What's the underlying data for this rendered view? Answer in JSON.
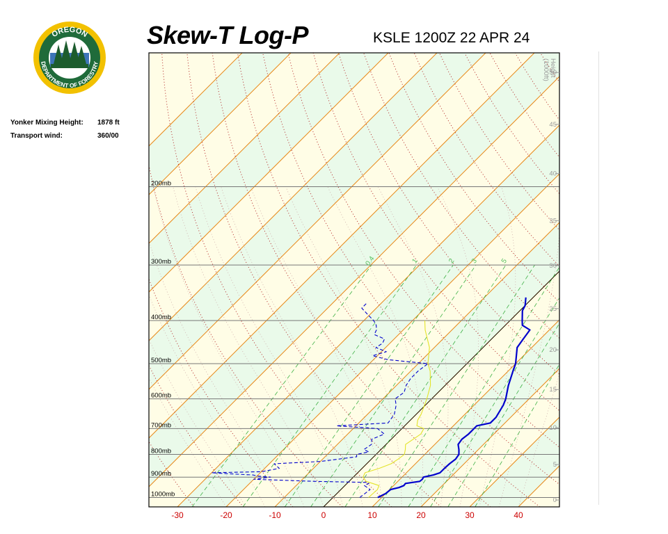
{
  "header": {
    "title": "Skew-T Log-P",
    "station_time": "KSLE 1200Z 22 APR 24"
  },
  "logo": {
    "top_text": "OREGON",
    "bottom_text": "DEPARTMENT OF FORESTRY",
    "colors": {
      "ring": "#1f6b3a",
      "gold": "#f2c100",
      "tree": "#1d5c2e",
      "sky": "#3e74b8"
    }
  },
  "info": {
    "mixing_height_label": "Yonker Mixing Height:",
    "mixing_height_value": "1878 ft",
    "transport_wind_label": "Transport wind:",
    "transport_wind_value": "360/00"
  },
  "chart_data": {
    "type": "line",
    "xlabel": "",
    "ylabel": "",
    "temperature_ticks": [
      "-30",
      "-20",
      "-10",
      "0",
      "10",
      "20",
      "30",
      "40"
    ],
    "pressure_levels": [
      {
        "label": "200mb",
        "p": 200
      },
      {
        "label": "300mb",
        "p": 300
      },
      {
        "label": "400mb",
        "p": 400
      },
      {
        "label": "500mb",
        "p": 500
      },
      {
        "label": "600mb",
        "p": 600
      },
      {
        "label": "700mb",
        "p": 700
      },
      {
        "label": "800mb",
        "p": 800
      },
      {
        "label": "900mb",
        "p": 900
      },
      {
        "label": "1000mb",
        "p": 1000
      }
    ],
    "height_axis": {
      "label_line1": "Height",
      "label_line2": "(1000ft)",
      "ticks": [
        {
          "label": "50",
          "kft": 50
        },
        {
          "label": "45",
          "kft": 45
        },
        {
          "label": "40",
          "kft": 40
        },
        {
          "label": "35",
          "kft": 35
        },
        {
          "label": "30",
          "kft": 30
        },
        {
          "label": "25",
          "kft": 25
        },
        {
          "label": "20",
          "kft": 20
        },
        {
          "label": "15",
          "kft": 15
        },
        {
          "label": "10",
          "kft": 10
        },
        {
          "label": "5",
          "kft": 5
        },
        {
          "label": "0",
          "kft": 0
        }
      ]
    },
    "mixing_ratio_labels": [
      {
        "label": "0.4",
        "w": 0.4
      },
      {
        "label": "1",
        "w": 1
      },
      {
        "label": "2",
        "w": 2
      },
      {
        "label": "3",
        "w": 3
      },
      {
        "label": "5",
        "w": 5
      }
    ],
    "series": [
      {
        "key": "temperature",
        "color": "#0000cc",
        "points": [
          [
            1000,
            9.2
          ],
          [
            980,
            10.0
          ],
          [
            960,
            10.2
          ],
          [
            950,
            11.5
          ],
          [
            940,
            12.1
          ],
          [
            930,
            12.0
          ],
          [
            920,
            14.5
          ],
          [
            910,
            14.6
          ],
          [
            900,
            14.4
          ],
          [
            890,
            16.0
          ],
          [
            880,
            16.9
          ],
          [
            860,
            16.9
          ],
          [
            840,
            17.0
          ],
          [
            820,
            17.3
          ],
          [
            800,
            17.0
          ],
          [
            780,
            16.0
          ],
          [
            760,
            14.8
          ],
          [
            740,
            14.5
          ],
          [
            720,
            14.8
          ],
          [
            700,
            14.8
          ],
          [
            690,
            14.8
          ],
          [
            680,
            17.0
          ],
          [
            660,
            17.0
          ],
          [
            640,
            16.5
          ],
          [
            620,
            16.0
          ],
          [
            600,
            15.2
          ],
          [
            560,
            13.0
          ],
          [
            520,
            11.0
          ],
          [
            500,
            10.0
          ],
          [
            460,
            7.0
          ],
          [
            440,
            6.5
          ],
          [
            420,
            6.0
          ],
          [
            410,
            3.5
          ],
          [
            400,
            2.5
          ],
          [
            380,
            0.5
          ],
          [
            370,
            0.0
          ],
          [
            355,
            -1.5
          ]
        ]
      },
      {
        "key": "dewpoint",
        "color": "#0000cc",
        "points": [
          [
            1000,
            5.5
          ],
          [
            960,
            6.0
          ],
          [
            940,
            4.0
          ],
          [
            930,
            4.5
          ],
          [
            925,
            4.0
          ],
          [
            920,
            -7.0
          ],
          [
            910,
            -20.0
          ],
          [
            900,
            -17.0
          ],
          [
            895,
            -20.0
          ],
          [
            890,
            -21.0
          ],
          [
            885,
            -26.0
          ],
          [
            880,
            -30.0
          ],
          [
            875,
            -20.0
          ],
          [
            860,
            -17.0
          ],
          [
            840,
            -19.0
          ],
          [
            830,
            -10.0
          ],
          [
            810,
            -3.5
          ],
          [
            800,
            -4.0
          ],
          [
            790,
            -2.0
          ],
          [
            780,
            -3.5
          ],
          [
            760,
            -3.0
          ],
          [
            740,
            -4.0
          ],
          [
            720,
            -2.5
          ],
          [
            700,
            -5.0
          ],
          [
            690,
            -14.0
          ],
          [
            680,
            -4.0
          ],
          [
            650,
            -4.5
          ],
          [
            620,
            -6.0
          ],
          [
            600,
            -7.5
          ],
          [
            580,
            -7.0
          ],
          [
            560,
            -8.0
          ],
          [
            540,
            -8.5
          ],
          [
            520,
            -8.5
          ],
          [
            500,
            -8.0
          ],
          [
            490,
            -17.0
          ],
          [
            480,
            -21.0
          ],
          [
            470,
            -19.0
          ],
          [
            460,
            -22.0
          ],
          [
            450,
            -21.5
          ],
          [
            440,
            -22.0
          ],
          [
            430,
            -25.0
          ],
          [
            420,
            -25.5
          ],
          [
            410,
            -26.5
          ],
          [
            400,
            -28.0
          ],
          [
            395,
            -29.0
          ],
          [
            385,
            -31.0
          ],
          [
            375,
            -33.0
          ],
          [
            365,
            -33.0
          ]
        ]
      },
      {
        "key": "wetbulb",
        "color": "#e3e329",
        "points": [
          [
            1000,
            7.3
          ],
          [
            960,
            7.5
          ],
          [
            940,
            7.0
          ],
          [
            920,
            3.5
          ],
          [
            900,
            2.0
          ],
          [
            880,
            1.5
          ],
          [
            860,
            3.5
          ],
          [
            840,
            5.0
          ],
          [
            820,
            5.5
          ],
          [
            800,
            5.8
          ],
          [
            780,
            5.0
          ],
          [
            760,
            4.0
          ],
          [
            740,
            4.5
          ],
          [
            720,
            5.0
          ],
          [
            700,
            4.5
          ],
          [
            690,
            2.5
          ],
          [
            670,
            1.5
          ],
          [
            650,
            1.0
          ],
          [
            600,
            -1.0
          ],
          [
            560,
            -3.0
          ],
          [
            520,
            -6.0
          ],
          [
            500,
            -8.0
          ],
          [
            460,
            -11.0
          ],
          [
            420,
            -15.5
          ],
          [
            400,
            -17.5
          ]
        ]
      }
    ]
  }
}
